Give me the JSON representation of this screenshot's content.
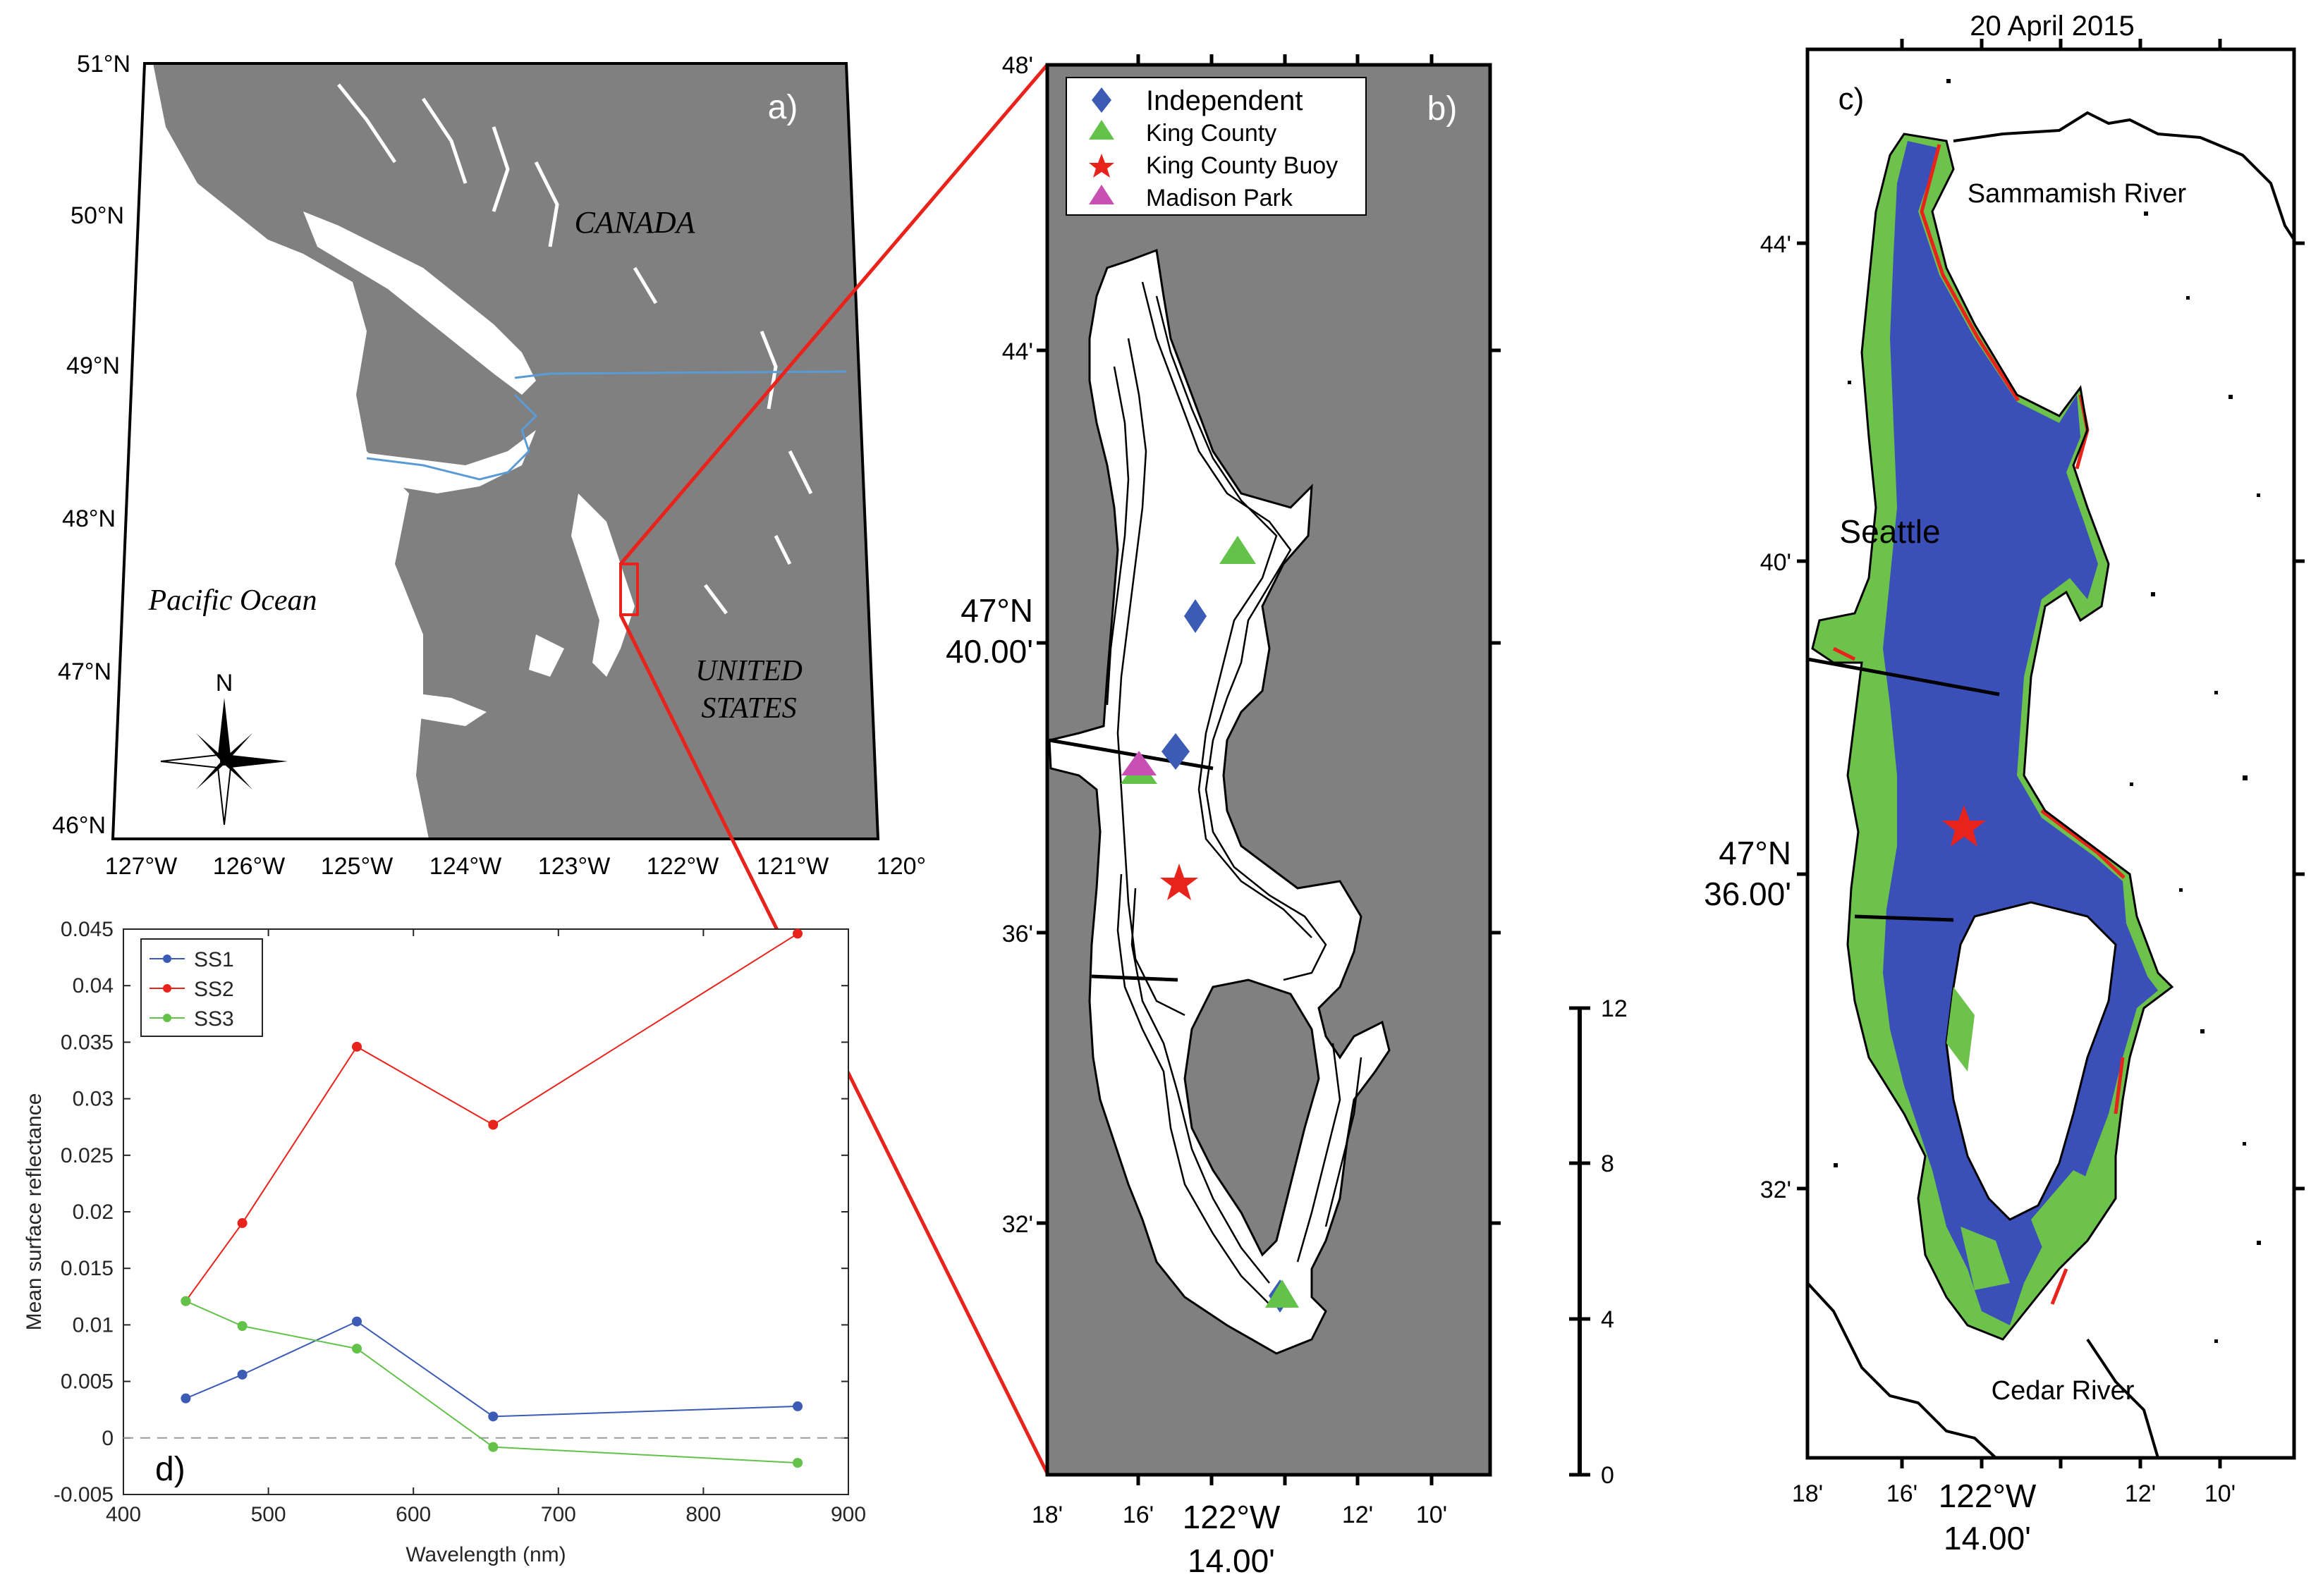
{
  "colors": {
    "land": "#808080",
    "water": "#ffffff",
    "zoom_line": "#e8231b",
    "border_line": "#5b9bd5",
    "ss1": "#3b5bb5",
    "ss2": "#e8231b",
    "ss3": "#62c24a",
    "blue_class": "#3a4fb8",
    "green_class": "#6cc24a",
    "red_class": "#e8231b",
    "independent": "#3b5bb5",
    "king_county": "#62c24a",
    "buoy": "#e8231b",
    "madison_park": "#c84fb4"
  },
  "panel_a": {
    "label": "a)",
    "lat_ticks": [
      "51°N",
      "50°N",
      "49°N",
      "48°N",
      "47°N",
      "46°N"
    ],
    "lon_ticks": [
      "127°W",
      "126°W",
      "125°W",
      "124°W",
      "123°W",
      "122°W",
      "121°W",
      "120°"
    ],
    "labels": {
      "canada": "CANADA",
      "pacific": "Pacific Ocean",
      "us_line1": "UNITED",
      "us_line2": "STATES",
      "north": "N"
    }
  },
  "panel_b": {
    "label": "b)",
    "lat_ticks": [
      "48'",
      "44'",
      "47°N",
      "40.00'",
      "36'",
      "32'"
    ],
    "lon_ticks": [
      "18'",
      "16'",
      "122°W",
      "14.00'",
      "12'",
      "10'"
    ],
    "legend": [
      {
        "name": "Independent",
        "symbol": "diamond"
      },
      {
        "name": "King County",
        "symbol": "triangle"
      },
      {
        "name": "King County Buoy",
        "symbol": "star"
      },
      {
        "name": "Madison Park",
        "symbol": "triangle"
      }
    ],
    "scale_ticks": [
      "12",
      "8",
      "4",
      "0"
    ]
  },
  "panel_c": {
    "label": "c)",
    "date": "20 April 2015",
    "lat_ticks": [
      "44'",
      "40'",
      "47°N",
      "36.00'",
      "32'"
    ],
    "lon_ticks": [
      "18'",
      "16'",
      "122°W",
      "14.00'",
      "12'",
      "10'"
    ],
    "places": {
      "sammamish": "Sammamish River",
      "seattle": "Seattle",
      "cedar": "Cedar River"
    }
  },
  "panel_d": {
    "label": "d)",
    "chart_data": {
      "type": "line",
      "xlabel": "Wavelength (nm)",
      "ylabel": "Mean surface reflectance",
      "x": [
        443,
        482,
        561,
        655,
        865
      ],
      "xlim": [
        400,
        900
      ],
      "ylim": [
        -0.005,
        0.045
      ],
      "x_ticks": [
        "400",
        "500",
        "600",
        "700",
        "800",
        "900"
      ],
      "y_ticks": [
        "-0.005",
        "0",
        "0.005",
        "0.01",
        "0.015",
        "0.02",
        "0.025",
        "0.03",
        "0.035",
        "0.04",
        "0.045"
      ],
      "legend_position": "top-left",
      "series": [
        {
          "name": "SS1",
          "values": [
            0.0035,
            0.0056,
            0.0103,
            0.0019,
            0.0028
          ]
        },
        {
          "name": "SS2",
          "values": [
            0.0121,
            0.019,
            0.0346,
            0.0277,
            0.0446
          ]
        },
        {
          "name": "SS3",
          "values": [
            0.0121,
            0.0099,
            0.0079,
            -0.0008,
            -0.0022
          ]
        }
      ]
    }
  }
}
